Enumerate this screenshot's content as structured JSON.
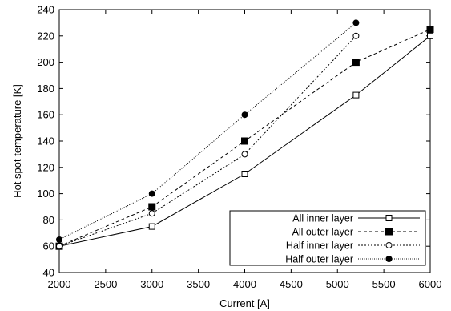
{
  "chart_data": {
    "type": "line",
    "xlabel": "Current [A]",
    "ylabel": "Hot spot temperature [K]",
    "xlim": [
      2000,
      6000
    ],
    "ylim": [
      40,
      240
    ],
    "xticks": [
      2000,
      2500,
      3000,
      3500,
      4000,
      4500,
      5000,
      5500,
      6000
    ],
    "yticks": [
      40,
      60,
      80,
      100,
      120,
      140,
      160,
      180,
      200,
      220,
      240
    ],
    "grid": false,
    "legend_position": "bottom-right",
    "series": [
      {
        "name": "All inner layer",
        "line_style": "solid",
        "marker": "open-square",
        "x": [
          2000,
          3000,
          4000,
          5200,
          6000
        ],
        "y": [
          60,
          75,
          115,
          175,
          220
        ]
      },
      {
        "name": "All outer layer",
        "line_style": "dashed",
        "marker": "filled-square",
        "x": [
          2000,
          3000,
          4000,
          5200,
          6000
        ],
        "y": [
          60,
          90,
          140,
          200,
          225
        ]
      },
      {
        "name": "Half inner layer",
        "line_style": "dotted",
        "marker": "open-circle",
        "x": [
          2000,
          3000,
          4000,
          5200
        ],
        "y": [
          60,
          85,
          130,
          220
        ]
      },
      {
        "name": "Half outer layer",
        "line_style": "fine-dotted",
        "marker": "filled-circle",
        "x": [
          2000,
          3000,
          4000,
          5200
        ],
        "y": [
          65,
          100,
          160,
          230
        ]
      }
    ]
  }
}
